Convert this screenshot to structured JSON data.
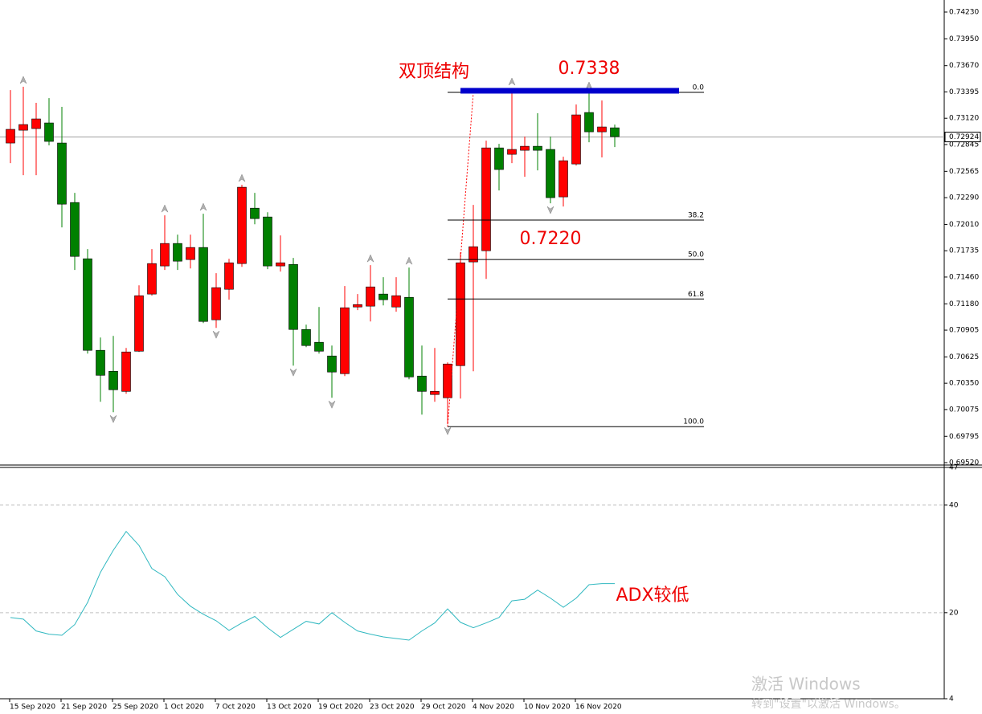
{
  "chart_data": [
    {
      "type": "candlestick",
      "categories": [
        "15 Sep 2020",
        null,
        null,
        null,
        "21 Sep 2020",
        null,
        null,
        null,
        "25 Sep 2020",
        null,
        null,
        null,
        "1 Oct 2020",
        null,
        null,
        null,
        "7 Oct 2020",
        null,
        null,
        null,
        "13 Oct 2020",
        null,
        null,
        null,
        "19 Oct 2020",
        null,
        null,
        null,
        "23 Oct 2020",
        null,
        null,
        null,
        "29 Oct 2020",
        null,
        null,
        null,
        "4 Nov 2020",
        null,
        null,
        null,
        "10 Nov 2020",
        null,
        null,
        null,
        "16 Nov 2020",
        null,
        null,
        null
      ],
      "open": [
        0.72861,
        0.72995,
        0.73012,
        0.73071,
        0.72861,
        0.72239,
        0.71651,
        0.70694,
        0.70475,
        0.70265,
        0.70685,
        0.71282,
        0.71576,
        0.71811,
        0.71643,
        0.71769,
        0.71013,
        0.71332,
        0.71601,
        0.7218,
        0.72088,
        0.71576,
        0.71592,
        0.70912,
        0.70778,
        0.70635,
        0.7045,
        0.71147,
        0.71156,
        0.71282,
        0.71147,
        0.71248,
        0.70425,
        0.70232,
        0.70198,
        0.70534,
        0.71618,
        0.71735,
        0.7281,
        0.72743,
        0.72785,
        0.72827,
        0.72794,
        0.72298,
        0.72642,
        0.7318,
        0.72978,
        0.7302
      ],
      "high": [
        0.73415,
        0.73449,
        0.73281,
        0.73331,
        0.73239,
        0.7234,
        0.71752,
        0.70828,
        0.70845,
        0.70719,
        0.71374,
        0.71752,
        0.72105,
        0.71903,
        0.71903,
        0.72122,
        0.715,
        0.71651,
        0.72424,
        0.7234,
        0.72138,
        0.71895,
        0.7166,
        0.70962,
        0.71147,
        0.70744,
        0.71366,
        0.71282,
        0.71584,
        0.71458,
        0.71458,
        0.71559,
        0.70744,
        0.70719,
        0.70568,
        0.71718,
        0.72214,
        0.72886,
        0.72852,
        0.73432,
        0.72928,
        0.73172,
        0.72928,
        0.72718,
        0.73264,
        0.7339,
        0.73306,
        0.73054
      ],
      "low": [
        0.72651,
        0.72525,
        0.72525,
        0.72836,
        0.71979,
        0.71534,
        0.7066,
        0.70156,
        0.70047,
        0.7024,
        0.70677,
        0.71265,
        0.71534,
        0.71534,
        0.7155,
        0.70979,
        0.70929,
        0.71223,
        0.71567,
        0.72012,
        0.71542,
        0.71517,
        0.70534,
        0.70727,
        0.7066,
        0.70198,
        0.70425,
        0.71114,
        0.70996,
        0.71164,
        0.71097,
        0.70391,
        0.70022,
        0.70156,
        0.69921,
        0.7019,
        0.70475,
        0.71441,
        0.72365,
        0.72651,
        0.72508,
        0.72575,
        0.72231,
        0.72197,
        0.72626,
        0.72869,
        0.7271,
        0.72819
      ],
      "close": [
        0.73004,
        0.73054,
        0.73113,
        0.72878,
        0.72222,
        0.71676,
        0.70694,
        0.70433,
        0.70282,
        0.70677,
        0.71265,
        0.71601,
        0.71811,
        0.71626,
        0.71769,
        0.70996,
        0.71349,
        0.71609,
        0.72399,
        0.72071,
        0.71576,
        0.71609,
        0.70912,
        0.70744,
        0.70685,
        0.70467,
        0.71139,
        0.71172,
        0.71357,
        0.71223,
        0.71265,
        0.70416,
        0.70265,
        0.70265,
        0.70551,
        0.71609,
        0.71777,
        0.7281,
        0.72584,
        0.72794,
        0.72827,
        0.72785,
        0.7229,
        0.72676,
        0.73155,
        0.72978,
        0.73029,
        0.72928
      ],
      "up_color": "#ff0000",
      "down_color": "#008000",
      "ylim": [
        0.69495,
        0.74356
      ],
      "yticks": [
        {
          "value": 0.7423,
          "label": "0.74230"
        },
        {
          "value": 0.7395,
          "label": "0.73950"
        },
        {
          "value": 0.7367,
          "label": "0.73670"
        },
        0.73395,
        {
          "value": 0.7312,
          "label": "0.73120"
        },
        0.72845,
        0.72565,
        {
          "value": 0.7229,
          "label": "0.72290"
        },
        {
          "value": 0.7201,
          "label": "0.72010"
        },
        0.71735,
        {
          "value": 0.7146,
          "label": "0.71460"
        },
        {
          "value": 0.7118,
          "label": "0.71180"
        },
        0.70905,
        0.70625,
        {
          "value": 0.7035,
          "label": "0.70350"
        },
        0.70075,
        0.69795,
        {
          "value": 0.6952,
          "label": "0.69520"
        }
      ],
      "grid": false,
      "last_price": 0.72924,
      "fibonacci": {
        "high": 0.7339,
        "low": 0.69896,
        "levels": [
          {
            "value": 0,
            "label": "0.0"
          },
          38.2,
          {
            "value": 50,
            "label": "50.0"
          },
          61.8,
          {
            "value": 100,
            "label": "100.0"
          }
        ]
      },
      "resistance_line": {
        "value": 0.73407,
        "color": "#0000cc"
      },
      "annotations": [
        "双顶结构",
        "0.7338",
        "0.7220"
      ]
    },
    {
      "type": "line",
      "values": [
        19.1,
        18.8,
        16.6,
        16.0,
        15.8,
        17.8,
        21.9,
        27.5,
        31.6,
        35.1,
        32.5,
        28.2,
        26.7,
        23.4,
        21.2,
        19.7,
        18.5,
        16.7,
        18.1,
        19.3,
        17.2,
        15.4,
        16.9,
        18.4,
        17.9,
        20.0,
        18.2,
        16.6,
        16.0,
        15.5,
        15.2,
        14.9,
        16.6,
        18.1,
        20.7,
        18.2,
        17.2,
        18.1,
        19.1,
        22.2,
        22.5,
        24.2,
        22.7,
        21.0,
        22.7,
        25.2,
        25.4,
        25.4
      ],
      "color": "#30b8c0",
      "ylim": [
        4,
        47
      ],
      "yticks": [
        47,
        40,
        20,
        4
      ],
      "grid": true,
      "annotations": [
        "ADX较低"
      ]
    }
  ],
  "watermark": {
    "title": "激活 Windows",
    "subtitle": "转到\"设置\"以激活 Windows。"
  }
}
